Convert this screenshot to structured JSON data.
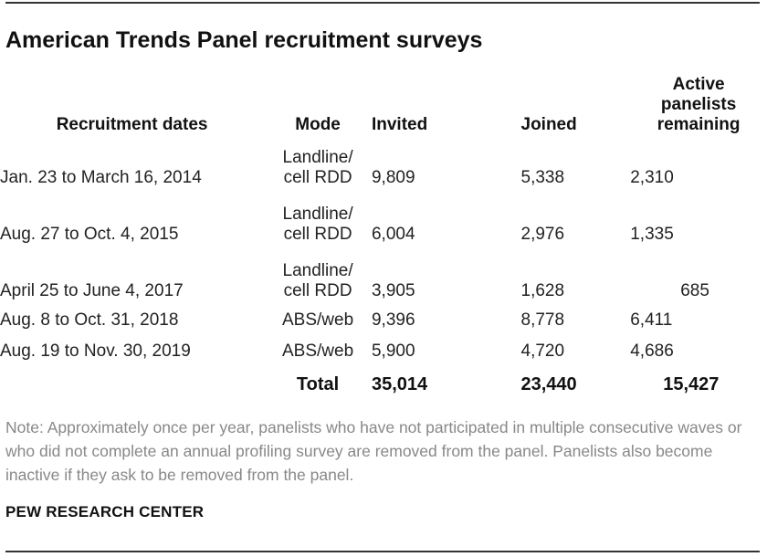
{
  "title": "American Trends Panel recruitment surveys",
  "table": {
    "headers": {
      "dates": "Recruitment dates",
      "mode": "Mode",
      "invited": "Invited",
      "joined": "Joined",
      "active": [
        "Active",
        "panelists",
        "remaining"
      ]
    },
    "rows": [
      {
        "dates": "Jan. 23 to March 16, 2014",
        "mode": [
          "Landline/",
          "cell RDD"
        ],
        "invited": "9,809",
        "joined": "5,338",
        "active": "2,310"
      },
      {
        "dates": "Aug. 27 to Oct. 4, 2015",
        "mode": [
          "Landline/",
          "cell RDD"
        ],
        "invited": "6,004",
        "joined": "2,976",
        "active": "1,335"
      },
      {
        "dates": "April 25 to June 4, 2017",
        "mode": [
          "Landline/",
          "cell RDD"
        ],
        "invited": "3,905",
        "joined": "1,628",
        "active": "685"
      },
      {
        "dates": "Aug. 8 to Oct. 31, 2018",
        "mode": [
          "ABS/web"
        ],
        "invited": "9,396",
        "joined": "8,778",
        "active": "6,411"
      },
      {
        "dates": "Aug. 19 to Nov. 30, 2019",
        "mode": [
          "ABS/web"
        ],
        "invited": "5,900",
        "joined": "4,720",
        "active": "4,686"
      }
    ],
    "total": {
      "label": "Total",
      "invited": "35,014",
      "joined": "23,440",
      "active": "15,427"
    }
  },
  "note": "Note: Approximately once per year, panelists who have not participated in multiple consecutive waves or who did not complete an annual profiling survey are removed from the panel. Panelists also become inactive if they ask to be removed from the panel.",
  "source": "PEW RESEARCH CENTER"
}
